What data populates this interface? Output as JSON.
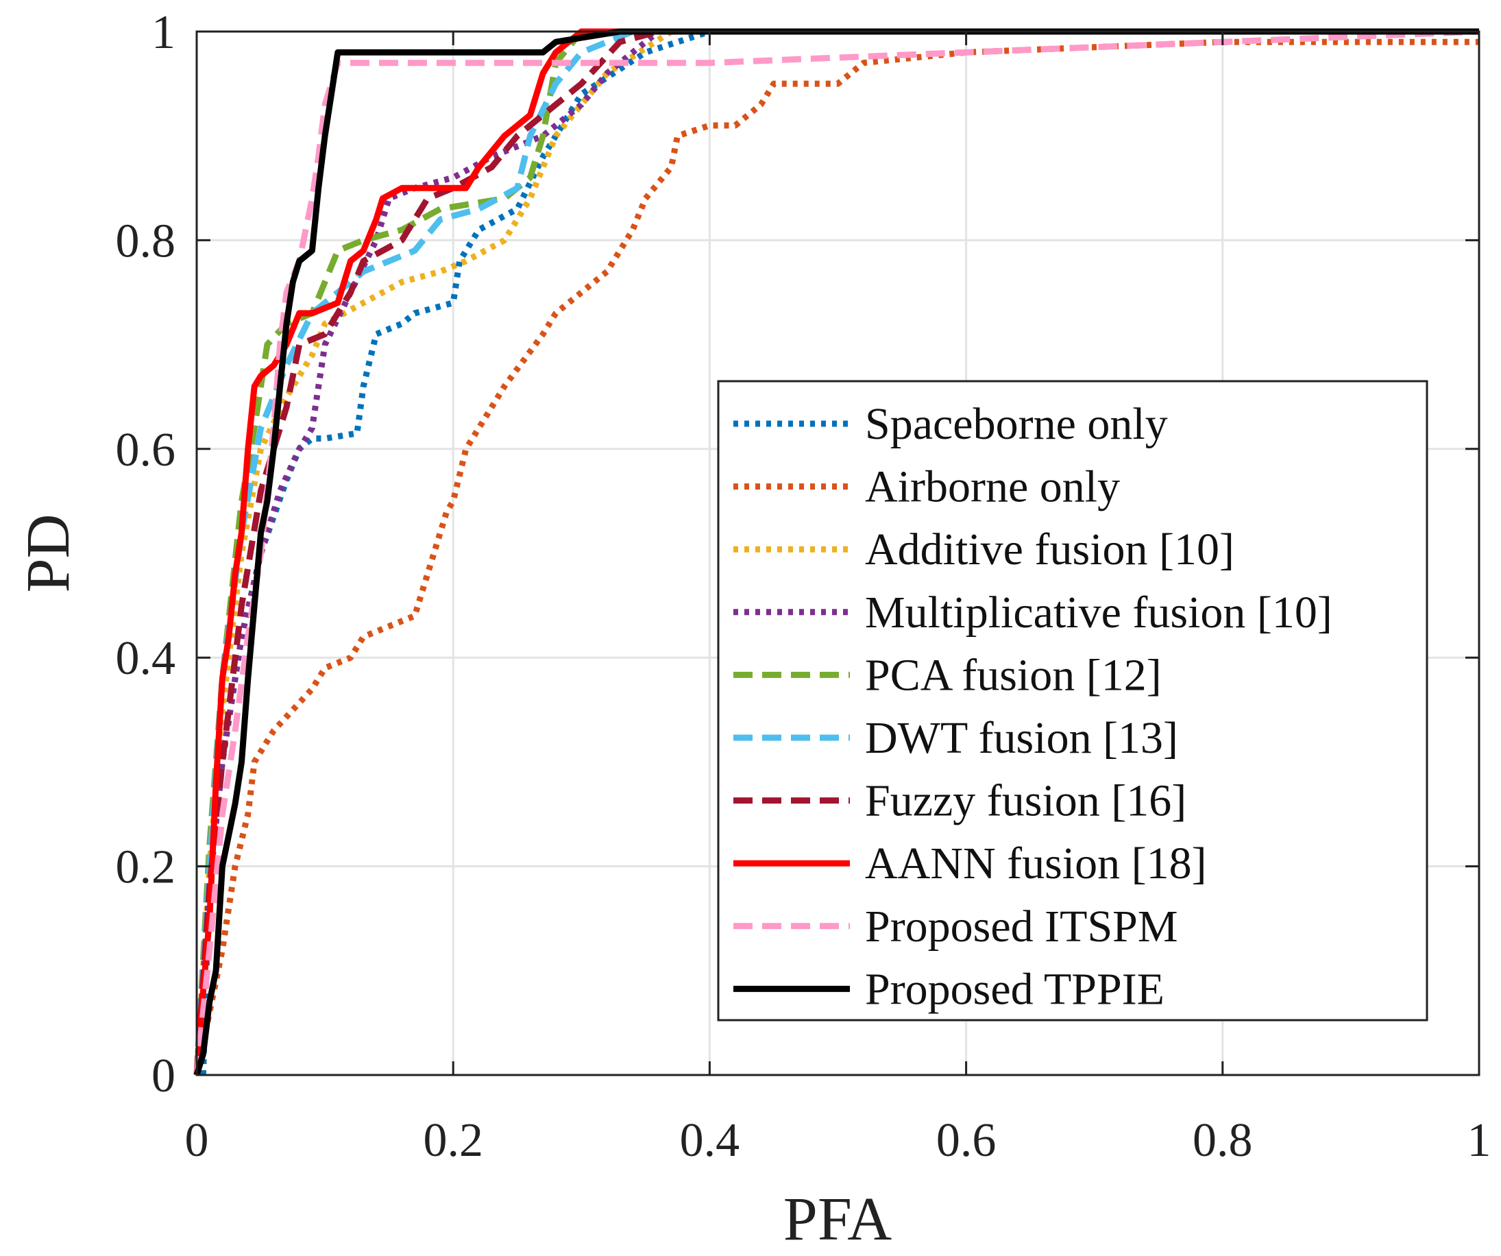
{
  "chart_data": {
    "type": "line",
    "title": "",
    "xlabel": "PFA",
    "ylabel": "PD",
    "xlim": [
      0,
      1
    ],
    "ylim": [
      0,
      1
    ],
    "xticks": [
      0,
      0.2,
      0.4,
      0.6,
      0.8,
      1
    ],
    "xtick_labels": [
      "0",
      "0.2",
      "0.4",
      "0.6",
      "0.8",
      "1"
    ],
    "yticks": [
      0,
      0.2,
      0.4,
      0.6,
      0.8,
      1
    ],
    "ytick_labels": [
      "0",
      "0.2",
      "0.4",
      "0.6",
      "0.8",
      "1"
    ],
    "grid": true,
    "legend_position": "bottom-right",
    "series": [
      {
        "name": "Spaceborne only",
        "color": "#0072BD",
        "style": "dotted",
        "points": [
          [
            0.005,
            0
          ],
          [
            0.01,
            0.2
          ],
          [
            0.02,
            0.3
          ],
          [
            0.035,
            0.42
          ],
          [
            0.05,
            0.5
          ],
          [
            0.07,
            0.57
          ],
          [
            0.08,
            0.6
          ],
          [
            0.09,
            0.61
          ],
          [
            0.1,
            0.61
          ],
          [
            0.125,
            0.615
          ],
          [
            0.13,
            0.66
          ],
          [
            0.14,
            0.71
          ],
          [
            0.16,
            0.72
          ],
          [
            0.17,
            0.73
          ],
          [
            0.2,
            0.74
          ],
          [
            0.205,
            0.78
          ],
          [
            0.22,
            0.81
          ],
          [
            0.25,
            0.83
          ],
          [
            0.27,
            0.88
          ],
          [
            0.3,
            0.94
          ],
          [
            0.35,
            0.98
          ],
          [
            0.4,
            1.0
          ],
          [
            1.0,
            1.0
          ]
        ]
      },
      {
        "name": "Airborne only",
        "color": "#D95319",
        "style": "dotted",
        "points": [
          [
            0,
            0
          ],
          [
            0.01,
            0.06
          ],
          [
            0.02,
            0.12
          ],
          [
            0.03,
            0.2
          ],
          [
            0.04,
            0.25
          ],
          [
            0.045,
            0.3
          ],
          [
            0.06,
            0.33
          ],
          [
            0.075,
            0.35
          ],
          [
            0.09,
            0.37
          ],
          [
            0.1,
            0.39
          ],
          [
            0.12,
            0.4
          ],
          [
            0.13,
            0.42
          ],
          [
            0.15,
            0.43
          ],
          [
            0.17,
            0.44
          ],
          [
            0.18,
            0.48
          ],
          [
            0.195,
            0.54
          ],
          [
            0.2,
            0.55
          ],
          [
            0.21,
            0.6
          ],
          [
            0.225,
            0.63
          ],
          [
            0.24,
            0.66
          ],
          [
            0.27,
            0.71
          ],
          [
            0.28,
            0.73
          ],
          [
            0.3,
            0.75
          ],
          [
            0.32,
            0.77
          ],
          [
            0.34,
            0.81
          ],
          [
            0.35,
            0.84
          ],
          [
            0.37,
            0.87
          ],
          [
            0.375,
            0.9
          ],
          [
            0.4,
            0.91
          ],
          [
            0.42,
            0.91
          ],
          [
            0.44,
            0.93
          ],
          [
            0.45,
            0.95
          ],
          [
            0.5,
            0.95
          ],
          [
            0.52,
            0.97
          ],
          [
            0.6,
            0.98
          ],
          [
            0.8,
            0.99
          ],
          [
            1.0,
            0.99
          ]
        ]
      },
      {
        "name": "Additive fusion [10]",
        "color": "#EDB120",
        "style": "dotted",
        "points": [
          [
            0,
            0
          ],
          [
            0.01,
            0.2
          ],
          [
            0.02,
            0.35
          ],
          [
            0.035,
            0.5
          ],
          [
            0.05,
            0.6
          ],
          [
            0.07,
            0.65
          ],
          [
            0.09,
            0.69
          ],
          [
            0.1,
            0.72
          ],
          [
            0.13,
            0.74
          ],
          [
            0.16,
            0.76
          ],
          [
            0.19,
            0.77
          ],
          [
            0.21,
            0.78
          ],
          [
            0.24,
            0.8
          ],
          [
            0.26,
            0.84
          ],
          [
            0.28,
            0.9
          ],
          [
            0.32,
            0.96
          ],
          [
            0.37,
            1.0
          ],
          [
            1.0,
            1.0
          ]
        ]
      },
      {
        "name": "Multiplicative fusion [10]",
        "color": "#7E2F8E",
        "style": "dotted",
        "points": [
          [
            0,
            0
          ],
          [
            0.01,
            0.18
          ],
          [
            0.02,
            0.3
          ],
          [
            0.035,
            0.42
          ],
          [
            0.05,
            0.5
          ],
          [
            0.065,
            0.56
          ],
          [
            0.08,
            0.6
          ],
          [
            0.09,
            0.62
          ],
          [
            0.095,
            0.66
          ],
          [
            0.1,
            0.7
          ],
          [
            0.12,
            0.75
          ],
          [
            0.14,
            0.8
          ],
          [
            0.15,
            0.84
          ],
          [
            0.17,
            0.85
          ],
          [
            0.2,
            0.86
          ],
          [
            0.23,
            0.88
          ],
          [
            0.25,
            0.89
          ],
          [
            0.27,
            0.9
          ],
          [
            0.3,
            0.93
          ],
          [
            0.32,
            0.96
          ],
          [
            0.36,
            1.0
          ],
          [
            1.0,
            1.0
          ]
        ]
      },
      {
        "name": "PCA fusion [12]",
        "color": "#77AC30",
        "style": "dashed",
        "points": [
          [
            0,
            0
          ],
          [
            0.01,
            0.22
          ],
          [
            0.02,
            0.38
          ],
          [
            0.035,
            0.55
          ],
          [
            0.045,
            0.62
          ],
          [
            0.055,
            0.7
          ],
          [
            0.07,
            0.72
          ],
          [
            0.09,
            0.73
          ],
          [
            0.1,
            0.76
          ],
          [
            0.11,
            0.79
          ],
          [
            0.13,
            0.8
          ],
          [
            0.16,
            0.81
          ],
          [
            0.19,
            0.83
          ],
          [
            0.24,
            0.84
          ],
          [
            0.26,
            0.86
          ],
          [
            0.27,
            0.9
          ],
          [
            0.28,
            0.97
          ],
          [
            0.3,
            1.0
          ],
          [
            1.0,
            1.0
          ]
        ]
      },
      {
        "name": "DWT fusion [13]",
        "color": "#4DBEEE",
        "style": "dashed",
        "points": [
          [
            0,
            0
          ],
          [
            0.01,
            0.2
          ],
          [
            0.02,
            0.38
          ],
          [
            0.035,
            0.52
          ],
          [
            0.05,
            0.62
          ],
          [
            0.07,
            0.68
          ],
          [
            0.09,
            0.73
          ],
          [
            0.11,
            0.75
          ],
          [
            0.13,
            0.77
          ],
          [
            0.15,
            0.78
          ],
          [
            0.17,
            0.79
          ],
          [
            0.19,
            0.82
          ],
          [
            0.22,
            0.83
          ],
          [
            0.25,
            0.85
          ],
          [
            0.26,
            0.9
          ],
          [
            0.28,
            0.95
          ],
          [
            0.3,
            0.98
          ],
          [
            0.34,
            1.0
          ],
          [
            1.0,
            1.0
          ]
        ]
      },
      {
        "name": "Fuzzy fusion [16]",
        "color": "#A2142F",
        "style": "dashed",
        "points": [
          [
            0,
            0
          ],
          [
            0.01,
            0.18
          ],
          [
            0.02,
            0.3
          ],
          [
            0.035,
            0.45
          ],
          [
            0.05,
            0.56
          ],
          [
            0.07,
            0.64
          ],
          [
            0.08,
            0.7
          ],
          [
            0.1,
            0.71
          ],
          [
            0.12,
            0.75
          ],
          [
            0.13,
            0.78
          ],
          [
            0.16,
            0.8
          ],
          [
            0.18,
            0.84
          ],
          [
            0.2,
            0.85
          ],
          [
            0.23,
            0.87
          ],
          [
            0.25,
            0.9
          ],
          [
            0.27,
            0.92
          ],
          [
            0.3,
            0.95
          ],
          [
            0.33,
            0.99
          ],
          [
            0.36,
            1.0
          ],
          [
            1.0,
            1.0
          ]
        ]
      },
      {
        "name": "AANN fusion [18]",
        "color": "#FF0000",
        "style": "solid",
        "points": [
          [
            0,
            0
          ],
          [
            0.005,
            0.08
          ],
          [
            0.01,
            0.15
          ],
          [
            0.015,
            0.28
          ],
          [
            0.02,
            0.38
          ],
          [
            0.025,
            0.42
          ],
          [
            0.03,
            0.48
          ],
          [
            0.035,
            0.52
          ],
          [
            0.04,
            0.6
          ],
          [
            0.045,
            0.66
          ],
          [
            0.05,
            0.67
          ],
          [
            0.06,
            0.68
          ],
          [
            0.07,
            0.7
          ],
          [
            0.08,
            0.73
          ],
          [
            0.09,
            0.73
          ],
          [
            0.11,
            0.74
          ],
          [
            0.12,
            0.78
          ],
          [
            0.13,
            0.79
          ],
          [
            0.14,
            0.82
          ],
          [
            0.145,
            0.84
          ],
          [
            0.16,
            0.85
          ],
          [
            0.18,
            0.85
          ],
          [
            0.21,
            0.85
          ],
          [
            0.22,
            0.87
          ],
          [
            0.24,
            0.9
          ],
          [
            0.25,
            0.91
          ],
          [
            0.26,
            0.92
          ],
          [
            0.27,
            0.96
          ],
          [
            0.28,
            0.98
          ],
          [
            0.3,
            1.0
          ],
          [
            1.0,
            1.0
          ]
        ]
      },
      {
        "name": "Proposed ITSPM",
        "color": "#FF99C8",
        "style": "dashed",
        "points": [
          [
            0,
            0
          ],
          [
            0.01,
            0.12
          ],
          [
            0.02,
            0.25
          ],
          [
            0.03,
            0.33
          ],
          [
            0.04,
            0.42
          ],
          [
            0.05,
            0.5
          ],
          [
            0.06,
            0.62
          ],
          [
            0.065,
            0.7
          ],
          [
            0.07,
            0.75
          ],
          [
            0.08,
            0.78
          ],
          [
            0.09,
            0.84
          ],
          [
            0.095,
            0.88
          ],
          [
            0.1,
            0.93
          ],
          [
            0.11,
            0.97
          ],
          [
            0.2,
            0.97
          ],
          [
            0.4,
            0.97
          ],
          [
            0.6,
            0.98
          ],
          [
            0.8,
            0.99
          ],
          [
            1.0,
            1.0
          ]
        ]
      },
      {
        "name": "Proposed TPPIE",
        "color": "#000000",
        "style": "solid",
        "points": [
          [
            0,
            0
          ],
          [
            0.005,
            0.02
          ],
          [
            0.01,
            0.07
          ],
          [
            0.015,
            0.1
          ],
          [
            0.02,
            0.2
          ],
          [
            0.025,
            0.23
          ],
          [
            0.03,
            0.26
          ],
          [
            0.035,
            0.3
          ],
          [
            0.04,
            0.38
          ],
          [
            0.045,
            0.45
          ],
          [
            0.05,
            0.52
          ],
          [
            0.055,
            0.55
          ],
          [
            0.06,
            0.6
          ],
          [
            0.065,
            0.66
          ],
          [
            0.07,
            0.72
          ],
          [
            0.075,
            0.76
          ],
          [
            0.08,
            0.78
          ],
          [
            0.09,
            0.79
          ],
          [
            0.095,
            0.85
          ],
          [
            0.1,
            0.9
          ],
          [
            0.105,
            0.94
          ],
          [
            0.11,
            0.98
          ],
          [
            0.15,
            0.98
          ],
          [
            0.27,
            0.98
          ],
          [
            0.28,
            0.99
          ],
          [
            0.33,
            1.0
          ],
          [
            1.0,
            1.0
          ]
        ]
      }
    ]
  }
}
